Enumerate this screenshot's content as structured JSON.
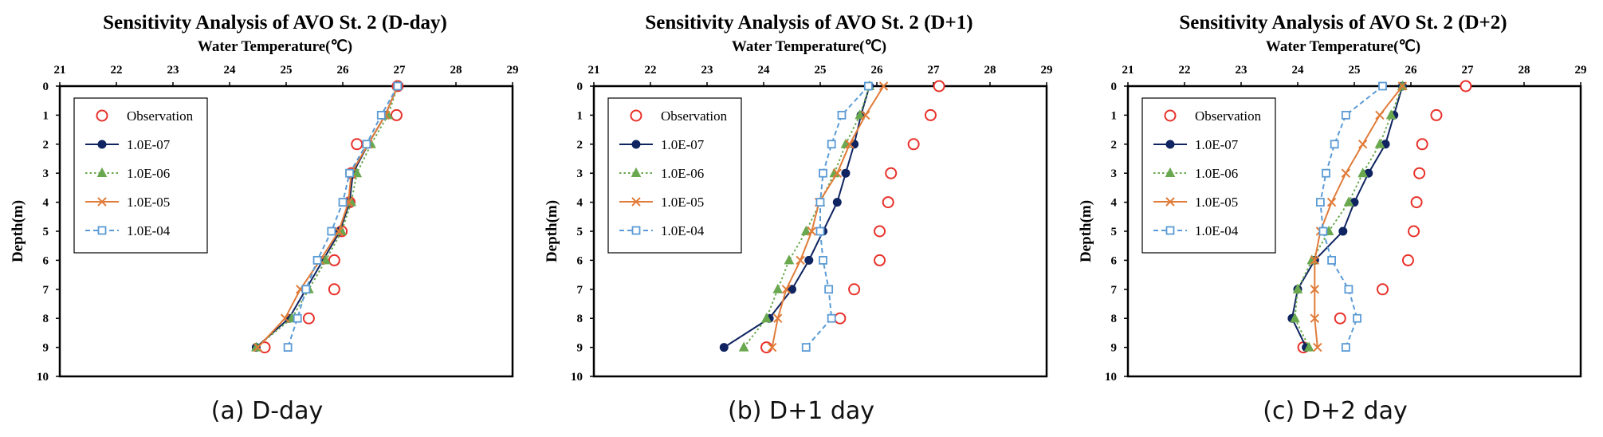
{
  "chart_data": [
    {
      "type": "line",
      "title": "Sensitivity Analysis of AVO St. 2 (D-day)",
      "xlabel": "Water Temperature(℃)",
      "ylabel": "Depth(m)",
      "xlim": [
        21,
        29
      ],
      "ylim": [
        0,
        10
      ],
      "y_inverted": true,
      "x_axis_position": "top",
      "xticks": [
        "21",
        "22",
        "23",
        "24",
        "25",
        "26",
        "27",
        "28",
        "29"
      ],
      "yticks": [
        "0",
        "1",
        "2",
        "3",
        "4",
        "5",
        "6",
        "7",
        "8",
        "9",
        "10"
      ],
      "legend_position": "top-left",
      "caption": "(a) D-day",
      "depth": [
        0,
        1,
        2,
        3,
        4,
        5,
        6,
        7,
        8,
        9
      ],
      "series": [
        {
          "name": "Observation",
          "marker": "open-circle",
          "color": "#e8312a",
          "line": "none",
          "values": [
            26.97,
            26.95,
            26.25,
            26.15,
            26.12,
            25.98,
            25.85,
            25.85,
            25.4,
            24.62
          ]
        },
        {
          "name": "1.0E-07",
          "marker": "filled-circle",
          "color": "#0f2460",
          "line": "solid",
          "values": [
            26.97,
            26.75,
            26.45,
            26.18,
            26.12,
            25.95,
            25.65,
            25.35,
            25.05,
            24.47
          ]
        },
        {
          "name": "1.0E-06",
          "marker": "triangle",
          "color": "#6aa84f",
          "line": "dotted",
          "values": [
            26.97,
            26.8,
            26.5,
            26.25,
            26.15,
            25.98,
            25.7,
            25.4,
            25.1,
            24.47
          ]
        },
        {
          "name": "1.0E-05",
          "marker": "cross",
          "color": "#e07b39",
          "line": "solid",
          "values": [
            26.97,
            26.75,
            26.45,
            26.15,
            26.1,
            25.93,
            25.6,
            25.25,
            24.98,
            24.5
          ]
        },
        {
          "name": "1.0E-04",
          "marker": "open-square",
          "color": "#5b9bd5",
          "line": "dashed",
          "values": [
            26.97,
            26.68,
            26.42,
            26.12,
            26.0,
            25.8,
            25.55,
            25.35,
            25.2,
            25.03
          ]
        }
      ]
    },
    {
      "type": "line",
      "title": "Sensitivity Analysis of AVO St. 2 (D+1)",
      "xlabel": "Water Temperature(℃)",
      "ylabel": "Depth(m)",
      "xlim": [
        21,
        29
      ],
      "ylim": [
        0,
        10
      ],
      "y_inverted": true,
      "x_axis_position": "top",
      "xticks": [
        "21",
        "22",
        "23",
        "24",
        "25",
        "26",
        "27",
        "28",
        "29"
      ],
      "yticks": [
        "0",
        "1",
        "2",
        "3",
        "4",
        "5",
        "6",
        "7",
        "8",
        "9",
        "10"
      ],
      "legend_position": "top-left",
      "caption": "(b) D+1 day",
      "depth": [
        0,
        1,
        2,
        3,
        4,
        5,
        6,
        7,
        8,
        9
      ],
      "series": [
        {
          "name": "Observation",
          "marker": "open-circle",
          "color": "#e8312a",
          "line": "none",
          "values": [
            27.1,
            26.95,
            26.65,
            26.25,
            26.2,
            26.05,
            26.05,
            25.6,
            25.35,
            24.05
          ]
        },
        {
          "name": "1.0E-07",
          "marker": "filled-circle",
          "color": "#0f2460",
          "line": "solid",
          "values": [
            25.87,
            25.72,
            25.6,
            25.45,
            25.3,
            25.05,
            24.8,
            24.5,
            24.1,
            23.3
          ]
        },
        {
          "name": "1.0E-06",
          "marker": "triangle",
          "color": "#6aa84f",
          "line": "dotted",
          "values": [
            25.87,
            25.7,
            25.45,
            25.25,
            25.0,
            24.75,
            24.45,
            24.25,
            24.05,
            23.65
          ]
        },
        {
          "name": "1.0E-05",
          "marker": "cross",
          "color": "#e07b39",
          "line": "solid",
          "values": [
            26.12,
            25.8,
            25.52,
            25.3,
            24.98,
            24.85,
            24.65,
            24.4,
            24.25,
            24.15
          ]
        },
        {
          "name": "1.0E-04",
          "marker": "open-square",
          "color": "#5b9bd5",
          "line": "dashed",
          "values": [
            25.85,
            25.38,
            25.2,
            25.05,
            25.0,
            25.0,
            25.05,
            25.15,
            25.2,
            24.75
          ]
        }
      ]
    },
    {
      "type": "line",
      "title": "Sensitivity Analysis of AVO St. 2 (D+2)",
      "xlabel": "Water Temperature(℃)",
      "ylabel": "Depth(m)",
      "xlim": [
        21,
        29
      ],
      "ylim": [
        0,
        10
      ],
      "y_inverted": true,
      "x_axis_position": "top",
      "xticks": [
        "21",
        "22",
        "23",
        "24",
        "25",
        "26",
        "27",
        "28",
        "29"
      ],
      "yticks": [
        "0",
        "1",
        "2",
        "3",
        "4",
        "5",
        "6",
        "7",
        "8",
        "9",
        "10"
      ],
      "legend_position": "top-left",
      "caption": "(c) D+2 day",
      "depth": [
        0,
        1,
        2,
        3,
        4,
        5,
        6,
        7,
        8,
        9
      ],
      "series": [
        {
          "name": "Observation",
          "marker": "open-circle",
          "color": "#e8312a",
          "line": "none",
          "values": [
            26.97,
            26.45,
            26.2,
            26.15,
            26.1,
            26.05,
            25.95,
            25.5,
            24.75,
            24.1
          ]
        },
        {
          "name": "1.0E-07",
          "marker": "filled-circle",
          "color": "#0f2460",
          "line": "solid",
          "values": [
            25.85,
            25.7,
            25.55,
            25.25,
            25.0,
            24.8,
            24.3,
            24.0,
            23.9,
            24.15
          ]
        },
        {
          "name": "1.0E-06",
          "marker": "triangle",
          "color": "#6aa84f",
          "line": "dotted",
          "values": [
            25.85,
            25.65,
            25.45,
            25.15,
            24.9,
            24.55,
            24.25,
            24.0,
            23.95,
            24.2
          ]
        },
        {
          "name": "1.0E-05",
          "marker": "cross",
          "color": "#e07b39",
          "line": "solid",
          "values": [
            25.85,
            25.45,
            25.15,
            24.85,
            24.6,
            24.4,
            24.3,
            24.3,
            24.3,
            24.35
          ]
        },
        {
          "name": "1.0E-04",
          "marker": "open-square",
          "color": "#5b9bd5",
          "line": "dashed",
          "values": [
            25.5,
            24.85,
            24.65,
            24.5,
            24.4,
            24.45,
            24.6,
            24.9,
            25.05,
            24.85
          ]
        }
      ]
    }
  ]
}
